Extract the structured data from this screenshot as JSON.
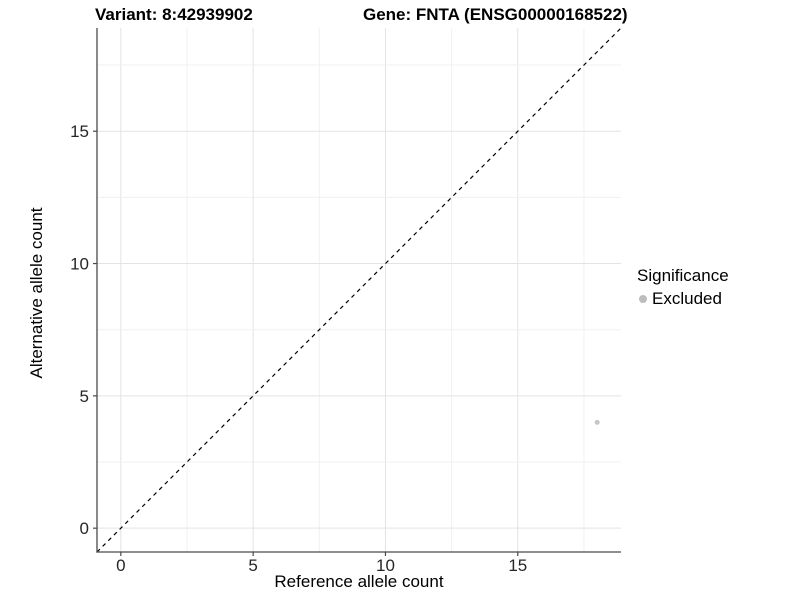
{
  "chart_data": {
    "type": "scatter",
    "title_left": "Variant: 8:42939902",
    "title_right": "Gene: FNTA (ENSG00000168522)",
    "xlabel": "Reference allele count",
    "ylabel": "Alternative allele count",
    "xlim": [
      -0.9,
      18.9
    ],
    "ylim": [
      -0.9,
      18.9
    ],
    "xticks": [
      0,
      5,
      10,
      15
    ],
    "yticks": [
      0,
      5,
      10,
      15
    ],
    "minor_tick_step": 2.5,
    "grid": true,
    "series": [
      {
        "name": "Excluded",
        "color": "#c6c6c6",
        "marker_size": 2.5,
        "points": [
          {
            "x": 18,
            "y": 4
          }
        ]
      }
    ],
    "reference_line": {
      "type": "identity",
      "slope": 1,
      "intercept": 0,
      "style": "dashed",
      "color": "#000000"
    },
    "legend": {
      "title": "Significance",
      "position": "right",
      "items": [
        {
          "label": "Excluded",
          "color": "#bdbdbd"
        }
      ]
    },
    "theme": {
      "background": "#ffffff",
      "grid_major_color": "#e3e3e3",
      "grid_minor_color": "#f0f0f0",
      "axis_color": "#4a4a4a",
      "tick_label_color": "#262626"
    }
  }
}
